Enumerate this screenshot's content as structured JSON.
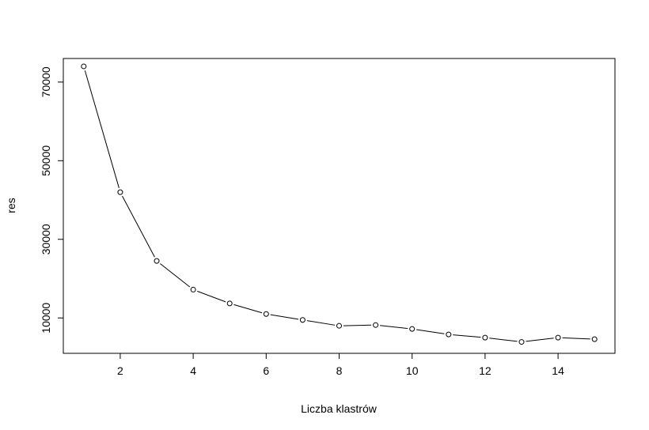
{
  "chart_data": {
    "type": "line",
    "title": "",
    "xlabel": "Liczba klastrów",
    "ylabel": "res",
    "xlim": [
      0.44,
      15.56
    ],
    "ylim": [
      1000,
      76000
    ],
    "x_ticks": [
      2,
      4,
      6,
      8,
      10,
      12,
      14
    ],
    "y_ticks": [
      10000,
      30000,
      50000,
      70000
    ],
    "grid": false,
    "markers": "open-circle",
    "series": [
      {
        "x": [
          1,
          2,
          3,
          4,
          5,
          6,
          7,
          8,
          9,
          10,
          11,
          12,
          13,
          14,
          15
        ],
        "values": [
          74000,
          42000,
          24500,
          17200,
          13700,
          11000,
          9500,
          8000,
          8200,
          7200,
          5800,
          5000,
          3900,
          5000,
          4600
        ]
      }
    ],
    "colors": {
      "line": "#000000",
      "marker_fill": "#ffffff",
      "axis": "#000000"
    }
  }
}
